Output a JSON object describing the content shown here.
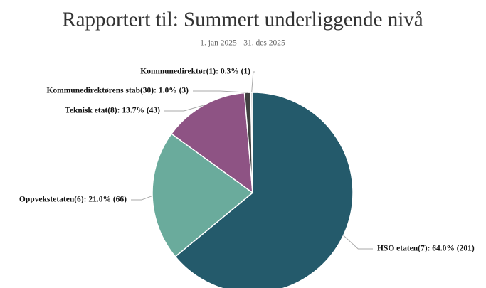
{
  "chart_data": {
    "type": "pie",
    "title": "Rapportert til: Summert underliggende nivå",
    "subtitle": "1. jan 2025 - 31. des 2025",
    "values": [
      64.0,
      21.0,
      13.7,
      1.0,
      0.3
    ],
    "value_labels": [
      "HSO etaten(7): 64.0% (201)",
      "Oppvekstetaten(6): 21.0% (66)",
      "Teknisk etat(8): 13.7% (43)",
      "Kommunedirektørens stab(30): 1.0% (3)",
      "Kommunedirektør(1): 0.3% (1)"
    ],
    "colors": [
      "#245a6b",
      "#6aab9c",
      "#8e5384",
      "#404040",
      "#d3d3d3"
    ]
  }
}
